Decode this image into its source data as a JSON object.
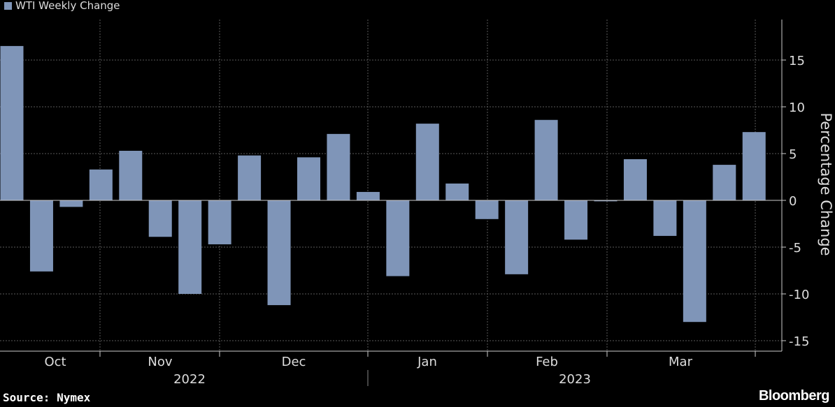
{
  "legend": {
    "label": "WTI Weekly Change",
    "color": "#7f95b8"
  },
  "source": "Source: Nymex",
  "brand": "Bloomberg",
  "chart_data": {
    "type": "bar",
    "title": "",
    "ylabel": "Percentage Change",
    "ylim": [
      -16,
      19
    ],
    "yticks": [
      15,
      10,
      5,
      0,
      -5,
      -10,
      -15
    ],
    "grid": true,
    "y_axis_side": "right",
    "series": [
      {
        "name": "WTI Weekly Change",
        "color": "#7f95b8",
        "values": [
          16.5,
          -7.6,
          -0.7,
          3.3,
          5.3,
          -3.9,
          -10.0,
          -4.7,
          4.8,
          -11.2,
          4.6,
          7.1,
          0.9,
          -8.1,
          8.2,
          1.8,
          -2.0,
          -7.9,
          8.6,
          -4.2,
          -0.1,
          4.4,
          -3.8,
          -13.0,
          3.8,
          7.3
        ]
      }
    ],
    "month_labels": [
      "Oct",
      "Nov",
      "Dec",
      "Jan",
      "Feb",
      "Mar"
    ],
    "year_labels": [
      "2022",
      "2023"
    ]
  }
}
